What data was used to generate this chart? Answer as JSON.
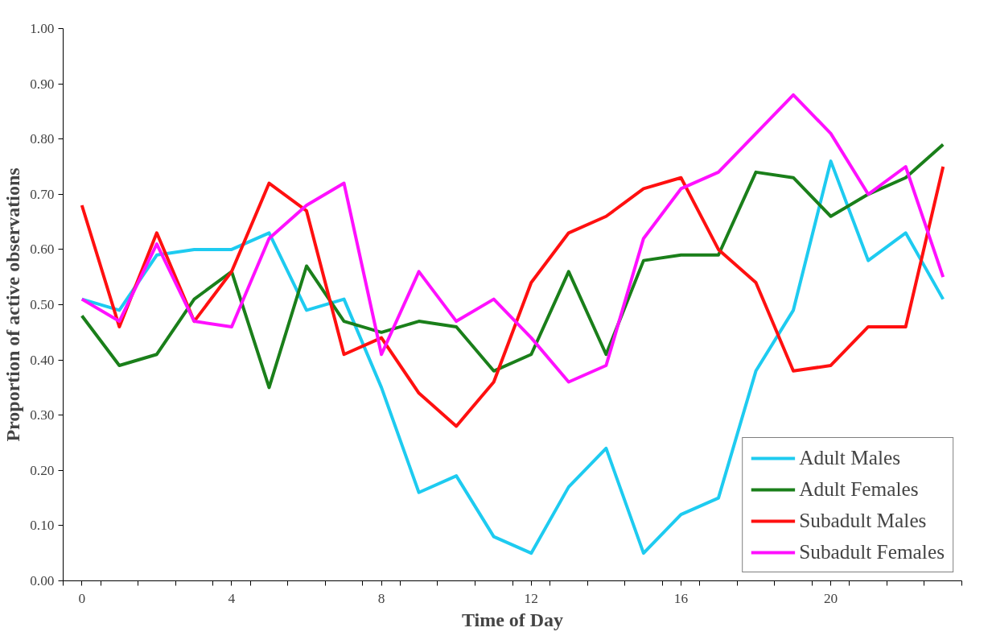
{
  "chart_data": {
    "type": "line",
    "xlabel": "Time of Day",
    "ylabel": "Proportion of active observations",
    "x": [
      0,
      1,
      2,
      3,
      4,
      5,
      6,
      7,
      8,
      9,
      10,
      11,
      12,
      13,
      14,
      15,
      16,
      17,
      18,
      19,
      20,
      21,
      22,
      23
    ],
    "series": [
      {
        "name": "Adult Males",
        "color": "#1ecbf0",
        "values": [
          0.51,
          0.49,
          0.59,
          0.6,
          0.6,
          0.63,
          0.49,
          0.51,
          0.35,
          0.16,
          0.19,
          0.08,
          0.05,
          0.17,
          0.24,
          0.05,
          0.12,
          0.15,
          0.38,
          0.49,
          0.76,
          0.58,
          0.63,
          0.51
        ]
      },
      {
        "name": "Adult Females",
        "color": "#1a7f1a",
        "values": [
          0.48,
          0.39,
          0.41,
          0.51,
          0.56,
          0.35,
          0.57,
          0.47,
          0.45,
          0.47,
          0.46,
          0.38,
          0.41,
          0.56,
          0.41,
          0.58,
          0.59,
          0.59,
          0.74,
          0.73,
          0.66,
          0.7,
          0.73,
          0.79
        ]
      },
      {
        "name": "Subadult Males",
        "color": "#ff1010",
        "values": [
          0.68,
          0.46,
          0.63,
          0.47,
          0.56,
          0.72,
          0.67,
          0.41,
          0.44,
          0.34,
          0.28,
          0.36,
          0.54,
          0.63,
          0.66,
          0.71,
          0.73,
          0.6,
          0.54,
          0.38,
          0.39,
          0.46,
          0.46,
          0.75
        ]
      },
      {
        "name": "Subadult Females",
        "color": "#ff10ff",
        "values": [
          0.51,
          0.47,
          0.61,
          0.47,
          0.46,
          0.62,
          0.68,
          0.72,
          0.41,
          0.56,
          0.47,
          0.51,
          0.44,
          0.36,
          0.39,
          0.62,
          0.71,
          0.74,
          0.81,
          0.88,
          0.81,
          0.7,
          0.75,
          0.55
        ]
      }
    ],
    "xlim": [
      -0.5,
      23.5
    ],
    "xticks": [
      {
        "value": -0.5,
        "label": null
      },
      0,
      {
        "value": 0.5,
        "label": null
      },
      {
        "value": 1.5,
        "label": null
      },
      {
        "value": 2.5,
        "label": null
      },
      {
        "value": 3.5,
        "label": null
      },
      4,
      {
        "value": 4.5,
        "label": null
      },
      {
        "value": 5.5,
        "label": null
      },
      {
        "value": 6.5,
        "label": null
      },
      {
        "value": 7.5,
        "label": null
      },
      8,
      {
        "value": 8.5,
        "label": null
      },
      {
        "value": 9.5,
        "label": null
      },
      {
        "value": 10.5,
        "label": null
      },
      {
        "value": 11.5,
        "label": null
      },
      12,
      {
        "value": 12.5,
        "label": null
      },
      {
        "value": 13.5,
        "label": null
      },
      {
        "value": 14.5,
        "label": null
      },
      {
        "value": 15.5,
        "label": null
      },
      16,
      {
        "value": 16.5,
        "label": null
      },
      {
        "value": 17.5,
        "label": null
      },
      {
        "value": 18.5,
        "label": null
      },
      {
        "value": 19.5,
        "label": null
      },
      20,
      {
        "value": 20.5,
        "label": null
      },
      {
        "value": 21.5,
        "label": null
      },
      {
        "value": 22.5,
        "label": null
      },
      {
        "value": 23.5,
        "label": null
      }
    ],
    "ylim": [
      0,
      1
    ],
    "yticks": [
      {
        "value": 0,
        "label": "0.00"
      },
      {
        "value": 0.1,
        "label": "0.10"
      },
      {
        "value": 0.2,
        "label": "0.20"
      },
      {
        "value": 0.3,
        "label": "0.30"
      },
      {
        "value": 0.4,
        "label": "0.40"
      },
      {
        "value": 0.5,
        "label": "0.50"
      },
      {
        "value": 0.6,
        "label": "0.60"
      },
      {
        "value": 0.7,
        "label": "0.70"
      },
      {
        "value": 0.8,
        "label": "0.80"
      },
      {
        "value": 0.9,
        "label": "0.90"
      },
      {
        "value": 1.0,
        "label": "1.00"
      }
    ],
    "grid": false,
    "legend": "bottom right",
    "marker": "none",
    "line_style": "solid"
  }
}
